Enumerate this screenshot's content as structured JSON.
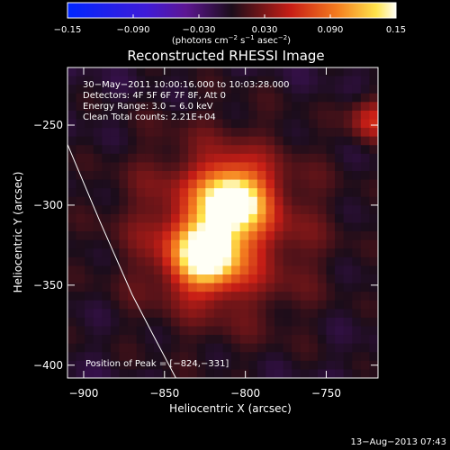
{
  "colorbar": {
    "ticks": [
      "−0.15",
      "−0.090",
      "−0.030",
      "0.030",
      "0.090",
      "0.15"
    ],
    "unit_parts": [
      "(photons cm",
      "−2",
      " s",
      "−1",
      " asec",
      "−2",
      ")"
    ],
    "colors": {
      "blue": "#0026ff",
      "indigo": "#3f1bd8",
      "purple": "#5d1693",
      "dark": "#1b0d1a",
      "red": "#c81e16",
      "orange": "#f47c1f",
      "yellow": "#ffe44c",
      "white": "#fffff6"
    }
  },
  "chart_data": {
    "type": "heatmap",
    "title": "Reconstructed RHESSI Image",
    "xlabel": "Heliocentric X (arcsec)",
    "ylabel": "Heliocentric Y (arcsec)",
    "x_ticks": [
      -900,
      -850,
      -800,
      -750
    ],
    "y_ticks": [
      -250,
      -300,
      -350,
      -400
    ],
    "xlim": [
      -910,
      -718
    ],
    "ylim": [
      -408,
      -214
    ],
    "color_range": [
      -0.15,
      0.15
    ],
    "info_lines": [
      "30−May−2011 10:00:16.000 to 10:03:28.000",
      "Detectors: 4F 5F 6F 7F 8F, Att 0",
      "Energy Range: 3.0 − 6.0 keV",
      "Clean     Total counts: 2.21E+04"
    ],
    "peak_label": "Position of Peak = [−824,−331]",
    "peak": {
      "x": -824,
      "y": -331
    },
    "secondary_peak": {
      "x": -808,
      "y": -297
    },
    "limb_points": [
      {
        "x": -910,
        "y": -262
      },
      {
        "x": -890,
        "y": -310
      },
      {
        "x": -870,
        "y": -356
      },
      {
        "x": -855,
        "y": -385
      },
      {
        "x": -843,
        "y": -408
      }
    ],
    "timestamp": "13−Aug−2013 07:43"
  }
}
